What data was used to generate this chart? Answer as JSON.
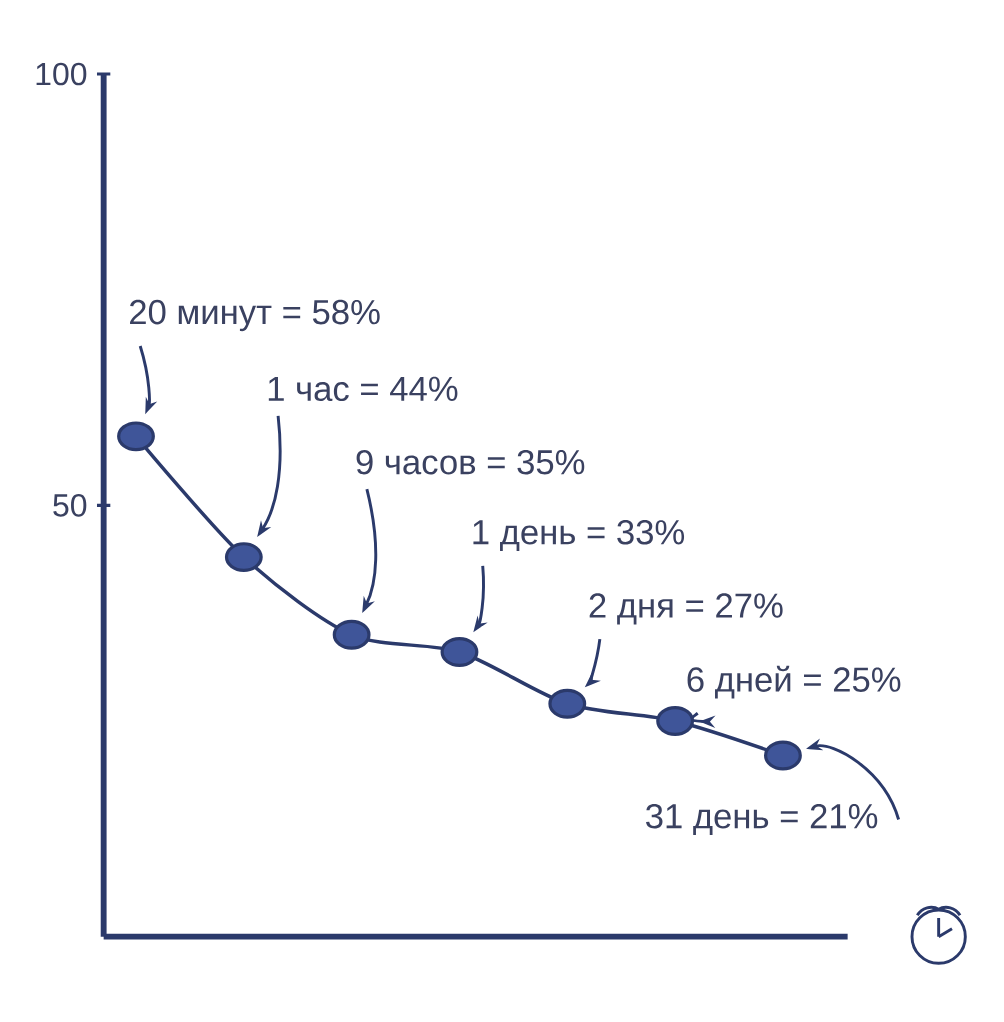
{
  "chart_data": {
    "type": "line",
    "categories": [
      null,
      null,
      null,
      null,
      null,
      null,
      null
    ],
    "values": [
      58,
      44,
      35,
      33,
      27,
      25,
      21
    ],
    "value_labels": [
      "20 минут = 58%",
      "1 час = 44%",
      "9 часов = 35%",
      "1 день = 33%",
      "2 дня = 27%",
      "6 дней = 25%",
      "31 день = 21%"
    ],
    "color": "#2b3a6b",
    "marker": "circle",
    "line_style": "solid",
    "ylim": [
      0,
      100
    ],
    "yticks": [
      50,
      100
    ],
    "tick_labels": "y",
    "grid": false
  }
}
